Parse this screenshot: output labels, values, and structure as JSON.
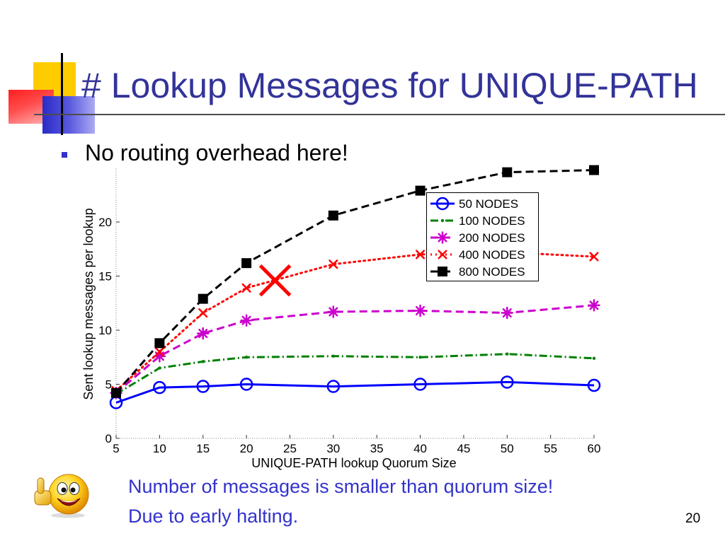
{
  "slide": {
    "title": "# Lookup Messages for UNIQUE-PATH",
    "bullet": "No routing overhead here!",
    "notes": [
      "Number of messages is smaller than quorum size!",
      "Due to early halting."
    ],
    "page_number": "20"
  },
  "icons": {
    "bullet": "square-bullet-icon",
    "mascot": "thumbs-up-smiley-icon"
  },
  "colors": {
    "title": "#333399",
    "bullet": "#3333CC",
    "notes": "#3333CC",
    "text": "#000000"
  },
  "chart_data": {
    "type": "line",
    "xlabel": "UNIQUE-PATH lookup Quorum Size",
    "ylabel": "Sent lookup messages per lookup",
    "x": [
      5,
      10,
      15,
      20,
      30,
      40,
      50,
      60
    ],
    "xlim": [
      5,
      60
    ],
    "ylim": [
      0,
      25
    ],
    "xticks": [
      5,
      10,
      15,
      20,
      25,
      30,
      35,
      40,
      45,
      50,
      55,
      60
    ],
    "yticks": [
      0,
      5,
      10,
      15,
      20
    ],
    "grid": false,
    "legend_position": "top-right",
    "series": [
      {
        "name": "50 NODES",
        "color": "#0000FF",
        "line_style": "solid",
        "marker": "circle",
        "values": [
          3.3,
          4.7,
          4.8,
          5.0,
          4.8,
          5.0,
          5.2,
          4.9
        ]
      },
      {
        "name": "100 NODES",
        "color": "#008000",
        "line_style": "dash-dot",
        "marker": "point",
        "values": [
          4.1,
          6.5,
          7.1,
          7.5,
          7.6,
          7.5,
          7.8,
          7.4
        ]
      },
      {
        "name": "200 NODES",
        "color": "#CC00CC",
        "line_style": "dashed",
        "marker": "asterisk",
        "values": [
          4.2,
          7.6,
          9.7,
          10.9,
          11.7,
          11.8,
          11.6,
          12.3
        ]
      },
      {
        "name": "400 NODES",
        "color": "#FF0000",
        "line_style": "dotted",
        "marker": "x",
        "values": [
          4.4,
          8.0,
          11.6,
          13.9,
          16.1,
          17.0,
          17.2,
          16.8
        ]
      },
      {
        "name": "800 NODES",
        "color": "#000000",
        "line_style": "dashed",
        "marker": "square",
        "values": [
          4.2,
          8.8,
          12.9,
          16.2,
          20.6,
          22.9,
          24.6,
          24.8
        ]
      }
    ],
    "annotations": [
      {
        "marker": "x",
        "color": "#FF0000",
        "x": 23.3,
        "y": 14.6
      }
    ]
  }
}
